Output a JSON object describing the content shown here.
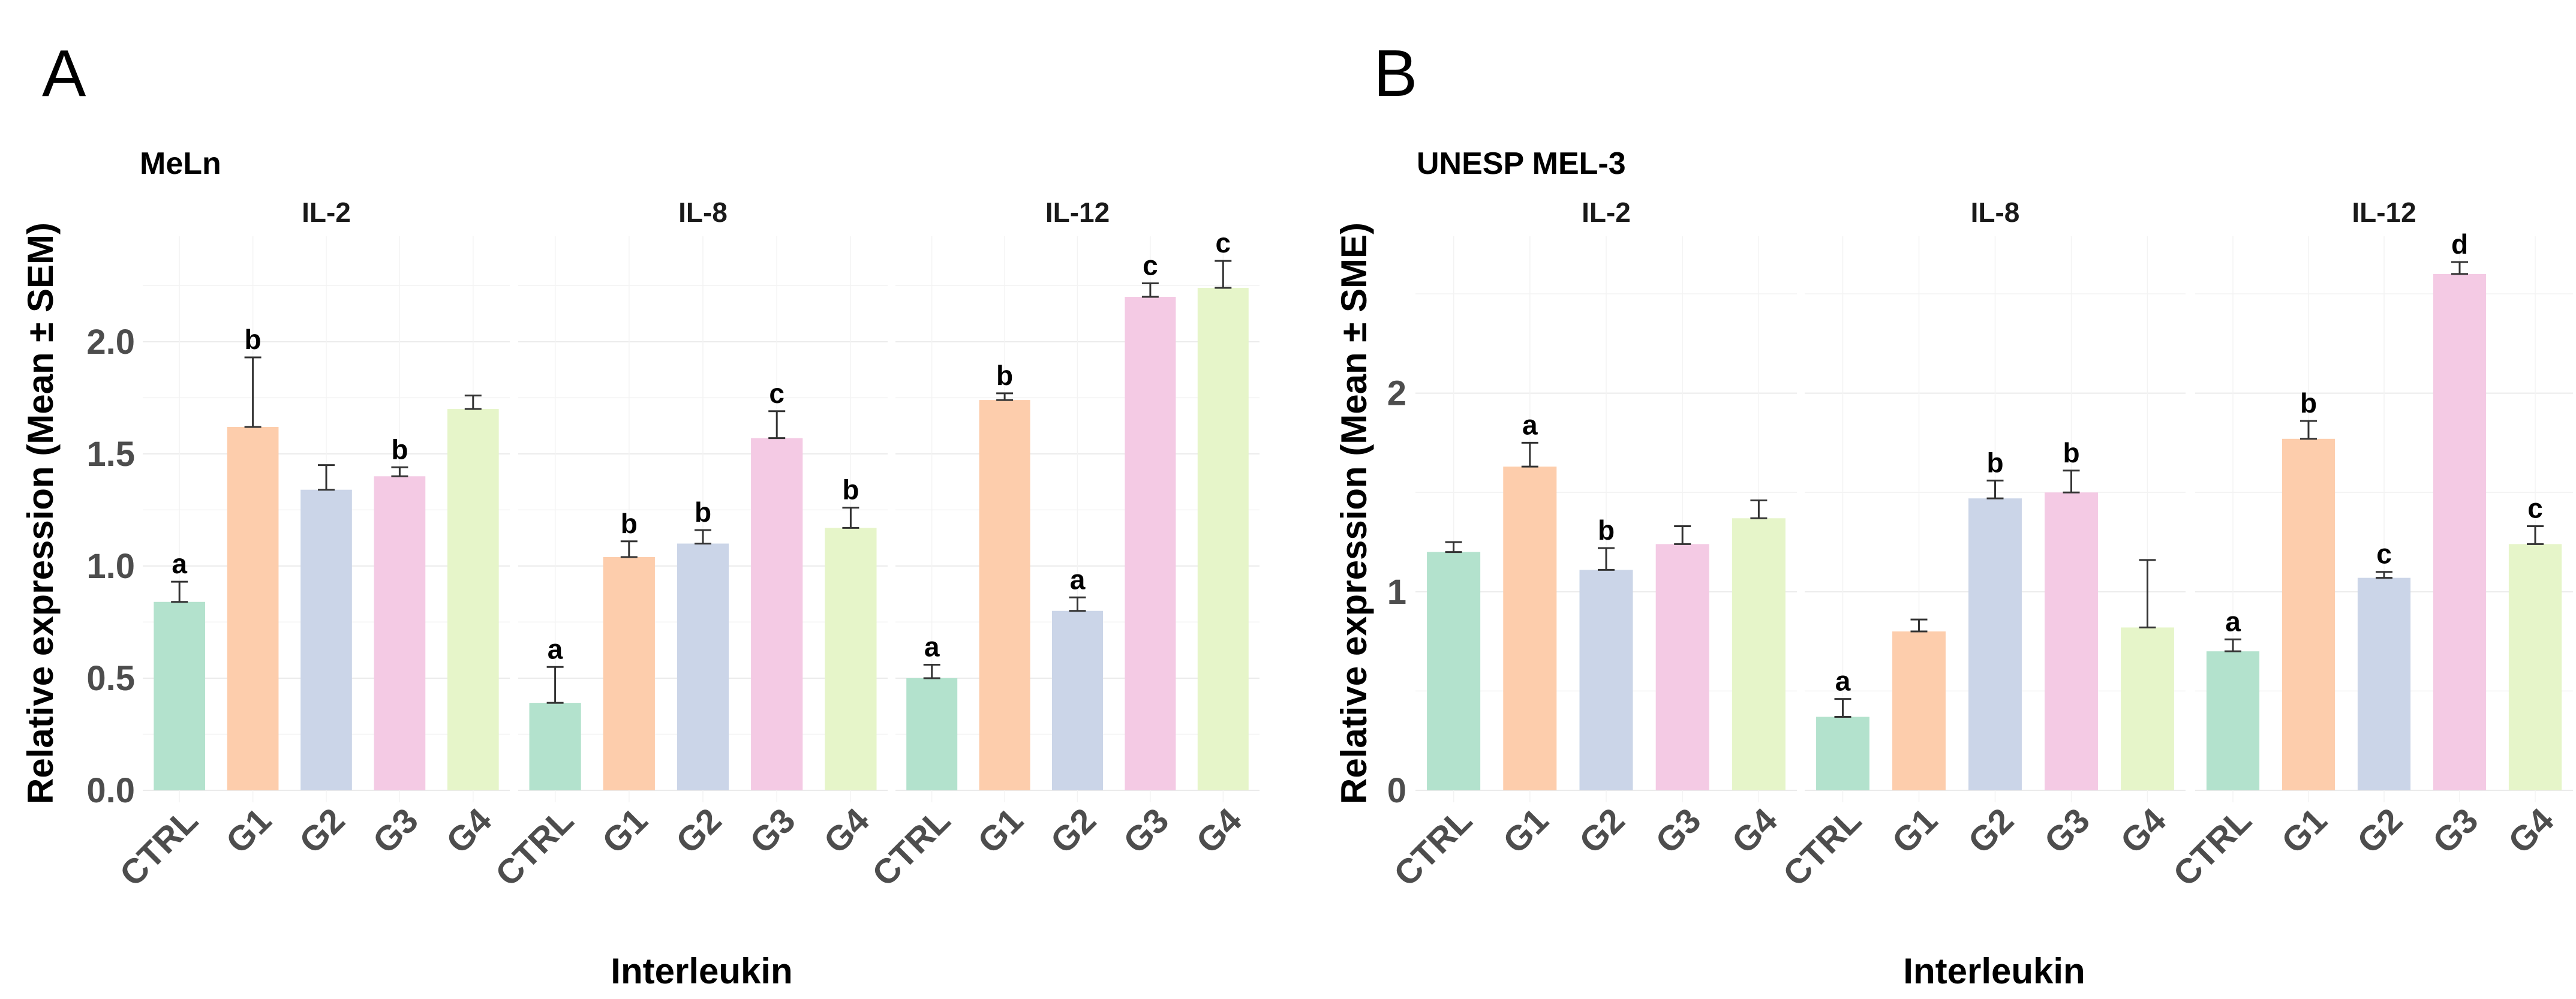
{
  "chart_data": [
    {
      "type": "bar",
      "panel_label": "A",
      "title": "MeLn",
      "xlabel": "Interleukin",
      "ylabel": "Relative expression (Mean ± SEM)",
      "ylim": [
        0,
        2.47
      ],
      "yticks": [
        0,
        0.5,
        1,
        1.5,
        2
      ],
      "ytick_labels": [
        "0.0",
        "0.5",
        "1.0",
        "1.5",
        "2.0"
      ],
      "grid": true,
      "categories": [
        "CTRL",
        "G1",
        "G2",
        "G3",
        "G4"
      ],
      "colors": [
        "#b3e2cd",
        "#fdcdac",
        "#cbd5e8",
        "#f4cae4",
        "#e6f5c9"
      ],
      "facets": [
        {
          "name": "IL-2",
          "values": [
            0.84,
            1.62,
            1.34,
            1.4,
            1.7
          ],
          "errors": [
            0.09,
            0.31,
            0.11,
            0.04,
            0.06
          ],
          "letters": [
            "a",
            "b",
            "",
            "b",
            ""
          ]
        },
        {
          "name": "IL-8",
          "values": [
            0.39,
            1.04,
            1.1,
            1.57,
            1.17
          ],
          "errors": [
            0.16,
            0.07,
            0.06,
            0.12,
            0.09
          ],
          "letters": [
            "a",
            "b",
            "b",
            "c",
            "b"
          ]
        },
        {
          "name": "IL-12",
          "values": [
            0.5,
            1.74,
            0.8,
            2.2,
            2.24
          ],
          "errors": [
            0.06,
            0.03,
            0.06,
            0.06,
            0.12
          ],
          "letters": [
            "a",
            "b",
            "a",
            "c",
            "c"
          ]
        }
      ]
    },
    {
      "type": "bar",
      "panel_label": "B",
      "title": "UNESP MEL-3",
      "xlabel": "Interleukin",
      "ylabel": "Relative expression (Mean ± SME)",
      "ylim": [
        0,
        2.79
      ],
      "yticks": [
        0,
        1,
        2
      ],
      "ytick_labels": [
        "0",
        "1",
        "2"
      ],
      "grid": true,
      "categories": [
        "CTRL",
        "G1",
        "G2",
        "G3",
        "G4"
      ],
      "colors": [
        "#b3e2cd",
        "#fdcdac",
        "#cbd5e8",
        "#f4cae4",
        "#e6f5c9"
      ],
      "facets": [
        {
          "name": "IL-2",
          "values": [
            1.2,
            1.63,
            1.11,
            1.24,
            1.37
          ],
          "errors": [
            0.05,
            0.12,
            0.11,
            0.09,
            0.09
          ],
          "letters": [
            "",
            "a",
            "b",
            "",
            ""
          ]
        },
        {
          "name": "IL-8",
          "values": [
            0.37,
            0.8,
            1.47,
            1.5,
            0.82
          ],
          "errors": [
            0.09,
            0.06,
            0.09,
            0.11,
            0.34
          ],
          "letters": [
            "a",
            "",
            "b",
            "b",
            ""
          ]
        },
        {
          "name": "IL-12",
          "values": [
            0.7,
            1.77,
            1.07,
            2.6,
            1.24
          ],
          "errors": [
            0.06,
            0.09,
            0.03,
            0.06,
            0.09
          ],
          "letters": [
            "a",
            "b",
            "c",
            "d",
            "c"
          ]
        }
      ]
    }
  ]
}
